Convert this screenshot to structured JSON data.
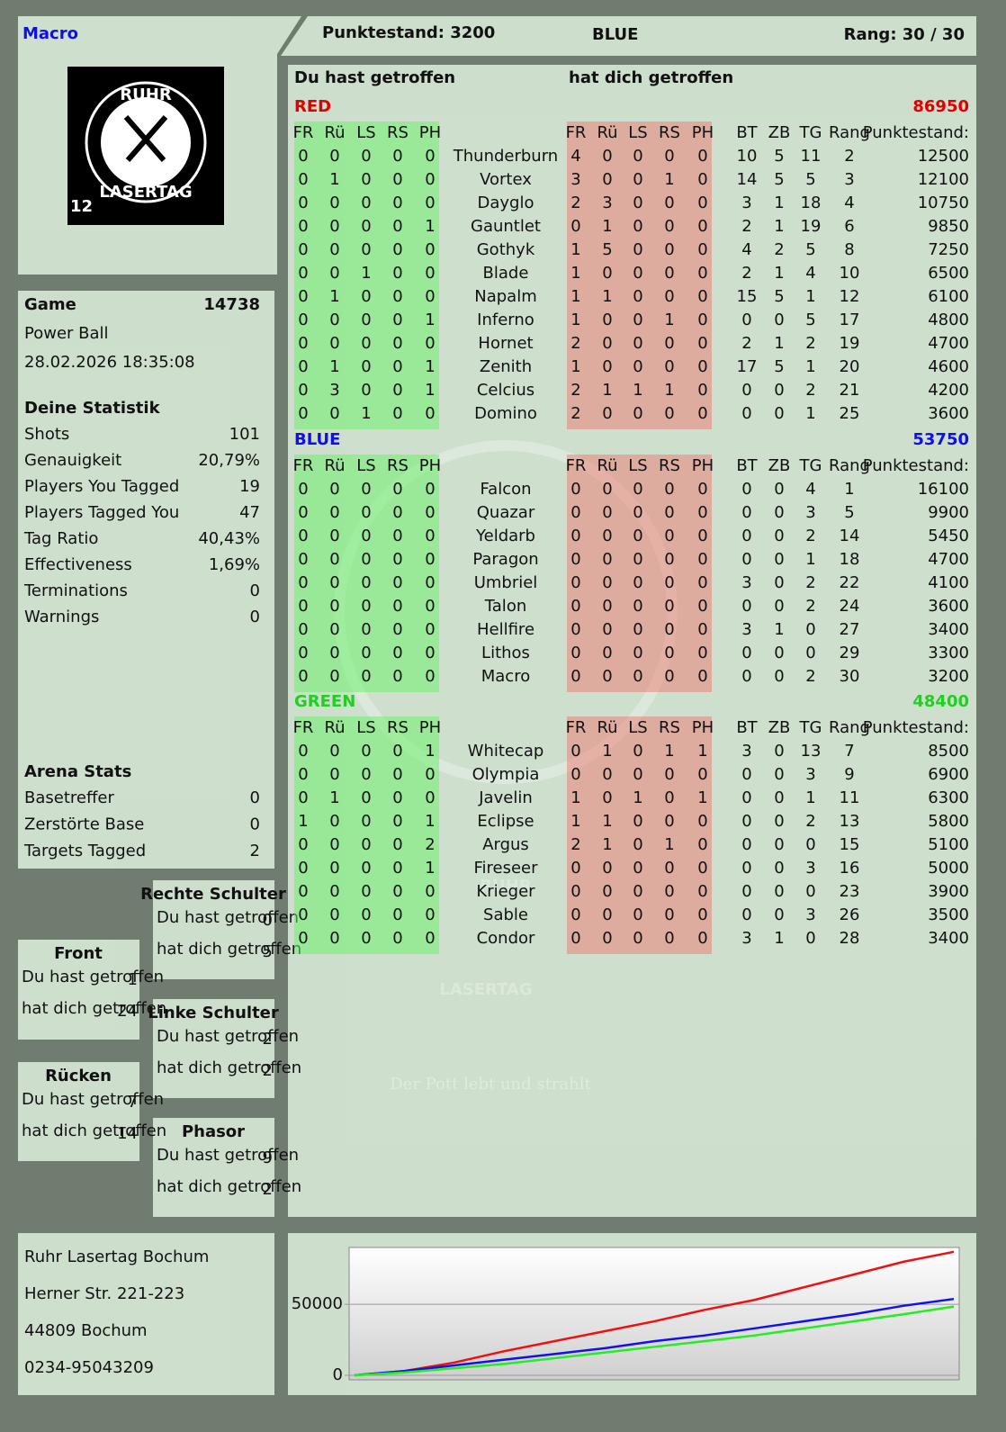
{
  "header": {
    "player": "Macro",
    "score": "Punktestand: 3200",
    "team": "BLUE",
    "rank": "Rang: 30 / 30"
  },
  "logo": {
    "top": "RUHR",
    "bottom": "LASERTAG",
    "badge": "12"
  },
  "watermark": {
    "line1": "RUHR",
    "line2": "LASERTAG",
    "slogan": "Der Pott lebt und strahlt"
  },
  "game": {
    "label": "Game",
    "number": "14738",
    "mode": "Power Ball",
    "datetime": "28.02.2026 18:35:08"
  },
  "stats": {
    "title": "Deine Statistik",
    "rows": [
      [
        "Shots",
        "101"
      ],
      [
        "Genauigkeit",
        "20,79%"
      ],
      [
        "Players You Tagged",
        "19"
      ],
      [
        "Players Tagged You",
        "47"
      ],
      [
        "Tag Ratio",
        "40,43%"
      ],
      [
        "Effectiveness",
        "1,69%"
      ],
      [
        "Terminations",
        "0"
      ],
      [
        "Warnings",
        "0"
      ]
    ]
  },
  "arena": {
    "title": "Arena Stats",
    "rows": [
      [
        "Basetreffer",
        "0"
      ],
      [
        "Zerstörte Base",
        "0"
      ],
      [
        "Targets Tagged",
        "2"
      ]
    ]
  },
  "zones": [
    {
      "title": "Rechte Schulter",
      "rows": [
        [
          "Du hast getroffen",
          "0"
        ],
        [
          "hat dich getroffen",
          "5"
        ]
      ]
    },
    {
      "title": "Front",
      "rows": [
        [
          "Du hast getroffen",
          "1"
        ],
        [
          "hat dich getroffen",
          "24"
        ]
      ]
    },
    {
      "title": "Linke Schulter",
      "rows": [
        [
          "Du hast getroffen",
          "2"
        ],
        [
          "hat dich getroffen",
          "2"
        ]
      ]
    },
    {
      "title": "Rücken",
      "rows": [
        [
          "Du hast getroffen",
          "7"
        ],
        [
          "hat dich getroffen",
          "14"
        ]
      ]
    },
    {
      "title": "Phasor",
      "rows": [
        [
          "Du hast getroffen",
          "9"
        ],
        [
          "hat dich getroffen",
          "2"
        ]
      ]
    }
  ],
  "address": [
    "Ruhr Lasertag Bochum",
    "Herner Str. 221-223",
    "44809 Bochum",
    "0234-95043209"
  ],
  "table": {
    "hit_title": "Du hast getroffen",
    "got_title": "hat dich getroffen",
    "zone_columns": [
      "FR",
      "Rü",
      "LS",
      "RS",
      "PH"
    ],
    "stat_columns": [
      "BT",
      "ZB",
      "TG",
      "Rang",
      "Punktestand:"
    ],
    "teams": [
      {
        "name": "RED",
        "color": "#e00000",
        "total": "86950",
        "players": [
          [
            "Thunderburn",
            [
              0,
              0,
              0,
              0,
              0
            ],
            [
              4,
              0,
              0,
              0,
              0
            ],
            [
              10,
              5,
              11,
              2,
              12500
            ]
          ],
          [
            "Vortex",
            [
              0,
              1,
              0,
              0,
              0
            ],
            [
              3,
              0,
              0,
              1,
              0
            ],
            [
              14,
              5,
              5,
              3,
              12100
            ]
          ],
          [
            "Dayglo",
            [
              0,
              0,
              0,
              0,
              0
            ],
            [
              2,
              3,
              0,
              0,
              0
            ],
            [
              3,
              1,
              18,
              4,
              10750
            ]
          ],
          [
            "Gauntlet",
            [
              0,
              0,
              0,
              0,
              1
            ],
            [
              0,
              1,
              0,
              0,
              0
            ],
            [
              2,
              1,
              19,
              6,
              9850
            ]
          ],
          [
            "Gothyk",
            [
              0,
              0,
              0,
              0,
              0
            ],
            [
              1,
              5,
              0,
              0,
              0
            ],
            [
              4,
              2,
              5,
              8,
              7250
            ]
          ],
          [
            "Blade",
            [
              0,
              0,
              1,
              0,
              0
            ],
            [
              1,
              0,
              0,
              0,
              0
            ],
            [
              2,
              1,
              4,
              10,
              6500
            ]
          ],
          [
            "Napalm",
            [
              0,
              1,
              0,
              0,
              0
            ],
            [
              1,
              1,
              0,
              0,
              0
            ],
            [
              15,
              5,
              1,
              12,
              6100
            ]
          ],
          [
            "Inferno",
            [
              0,
              0,
              0,
              0,
              1
            ],
            [
              1,
              0,
              0,
              1,
              0
            ],
            [
              0,
              0,
              5,
              17,
              4800
            ]
          ],
          [
            "Hornet",
            [
              0,
              0,
              0,
              0,
              0
            ],
            [
              2,
              0,
              0,
              0,
              0
            ],
            [
              2,
              1,
              2,
              19,
              4700
            ]
          ],
          [
            "Zenith",
            [
              0,
              1,
              0,
              0,
              1
            ],
            [
              1,
              0,
              0,
              0,
              0
            ],
            [
              17,
              5,
              1,
              20,
              4600
            ]
          ],
          [
            "Celcius",
            [
              0,
              3,
              0,
              0,
              1
            ],
            [
              2,
              1,
              1,
              1,
              0
            ],
            [
              0,
              0,
              2,
              21,
              4200
            ]
          ],
          [
            "Domino",
            [
              0,
              0,
              1,
              0,
              0
            ],
            [
              2,
              0,
              0,
              0,
              0
            ],
            [
              0,
              0,
              1,
              25,
              3600
            ]
          ]
        ]
      },
      {
        "name": "BLUE",
        "color": "#1010e0",
        "total": "53750",
        "players": [
          [
            "Falcon",
            [
              0,
              0,
              0,
              0,
              0
            ],
            [
              0,
              0,
              0,
              0,
              0
            ],
            [
              0,
              0,
              4,
              1,
              16100
            ]
          ],
          [
            "Quazar",
            [
              0,
              0,
              0,
              0,
              0
            ],
            [
              0,
              0,
              0,
              0,
              0
            ],
            [
              0,
              0,
              3,
              5,
              9900
            ]
          ],
          [
            "Yeldarb",
            [
              0,
              0,
              0,
              0,
              0
            ],
            [
              0,
              0,
              0,
              0,
              0
            ],
            [
              0,
              0,
              2,
              14,
              5450
            ]
          ],
          [
            "Paragon",
            [
              0,
              0,
              0,
              0,
              0
            ],
            [
              0,
              0,
              0,
              0,
              0
            ],
            [
              0,
              0,
              1,
              18,
              4700
            ]
          ],
          [
            "Umbriel",
            [
              0,
              0,
              0,
              0,
              0
            ],
            [
              0,
              0,
              0,
              0,
              0
            ],
            [
              3,
              0,
              2,
              22,
              4100
            ]
          ],
          [
            "Talon",
            [
              0,
              0,
              0,
              0,
              0
            ],
            [
              0,
              0,
              0,
              0,
              0
            ],
            [
              0,
              0,
              2,
              24,
              3600
            ]
          ],
          [
            "Hellfire",
            [
              0,
              0,
              0,
              0,
              0
            ],
            [
              0,
              0,
              0,
              0,
              0
            ],
            [
              3,
              1,
              0,
              27,
              3400
            ]
          ],
          [
            "Lithos",
            [
              0,
              0,
              0,
              0,
              0
            ],
            [
              0,
              0,
              0,
              0,
              0
            ],
            [
              0,
              0,
              0,
              29,
              3300
            ]
          ],
          [
            "Macro",
            [
              0,
              0,
              0,
              0,
              0
            ],
            [
              0,
              0,
              0,
              0,
              0
            ],
            [
              0,
              0,
              2,
              30,
              3200
            ]
          ]
        ]
      },
      {
        "name": "GREEN",
        "color": "#20d020",
        "total": "48400",
        "players": [
          [
            "Whitecap",
            [
              0,
              0,
              0,
              0,
              1
            ],
            [
              0,
              1,
              0,
              1,
              1
            ],
            [
              3,
              0,
              13,
              7,
              8500
            ]
          ],
          [
            "Olympia",
            [
              0,
              0,
              0,
              0,
              0
            ],
            [
              0,
              0,
              0,
              0,
              0
            ],
            [
              0,
              0,
              3,
              9,
              6900
            ]
          ],
          [
            "Javelin",
            [
              0,
              1,
              0,
              0,
              0
            ],
            [
              1,
              0,
              1,
              0,
              1
            ],
            [
              0,
              0,
              1,
              11,
              6300
            ]
          ],
          [
            "Eclipse",
            [
              1,
              0,
              0,
              0,
              1
            ],
            [
              1,
              1,
              0,
              0,
              0
            ],
            [
              0,
              0,
              2,
              13,
              5800
            ]
          ],
          [
            "Argus",
            [
              0,
              0,
              0,
              0,
              2
            ],
            [
              2,
              1,
              0,
              1,
              0
            ],
            [
              0,
              0,
              0,
              15,
              5100
            ]
          ],
          [
            "Fireseer",
            [
              0,
              0,
              0,
              0,
              1
            ],
            [
              0,
              0,
              0,
              0,
              0
            ],
            [
              0,
              0,
              3,
              16,
              5000
            ]
          ],
          [
            "Krieger",
            [
              0,
              0,
              0,
              0,
              0
            ],
            [
              0,
              0,
              0,
              0,
              0
            ],
            [
              0,
              0,
              0,
              23,
              3900
            ]
          ],
          [
            "Sable",
            [
              0,
              0,
              0,
              0,
              0
            ],
            [
              0,
              0,
              0,
              0,
              0
            ],
            [
              0,
              0,
              3,
              26,
              3500
            ]
          ],
          [
            "Condor",
            [
              0,
              0,
              0,
              0,
              0
            ],
            [
              0,
              0,
              0,
              0,
              0
            ],
            [
              3,
              1,
              0,
              28,
              3400
            ]
          ]
        ]
      }
    ]
  },
  "chart_data": {
    "type": "line",
    "ylim": [
      0,
      90000
    ],
    "yticks": [
      0,
      50000
    ],
    "series": [
      {
        "name": "RED",
        "color": "#ee1111",
        "values": [
          0,
          3000,
          9000,
          17000,
          24000,
          31000,
          38000,
          46000,
          53000,
          62000,
          71000,
          80000,
          86950
        ]
      },
      {
        "name": "BLUE",
        "color": "#1111ee",
        "values": [
          0,
          3000,
          7000,
          11000,
          15000,
          19000,
          24000,
          28000,
          33000,
          38000,
          43000,
          49000,
          53750
        ]
      },
      {
        "name": "GREEN",
        "color": "#22ee22",
        "values": [
          0,
          2000,
          5000,
          8000,
          12000,
          16000,
          20000,
          24000,
          28000,
          33000,
          38000,
          43000,
          48400
        ]
      }
    ]
  }
}
